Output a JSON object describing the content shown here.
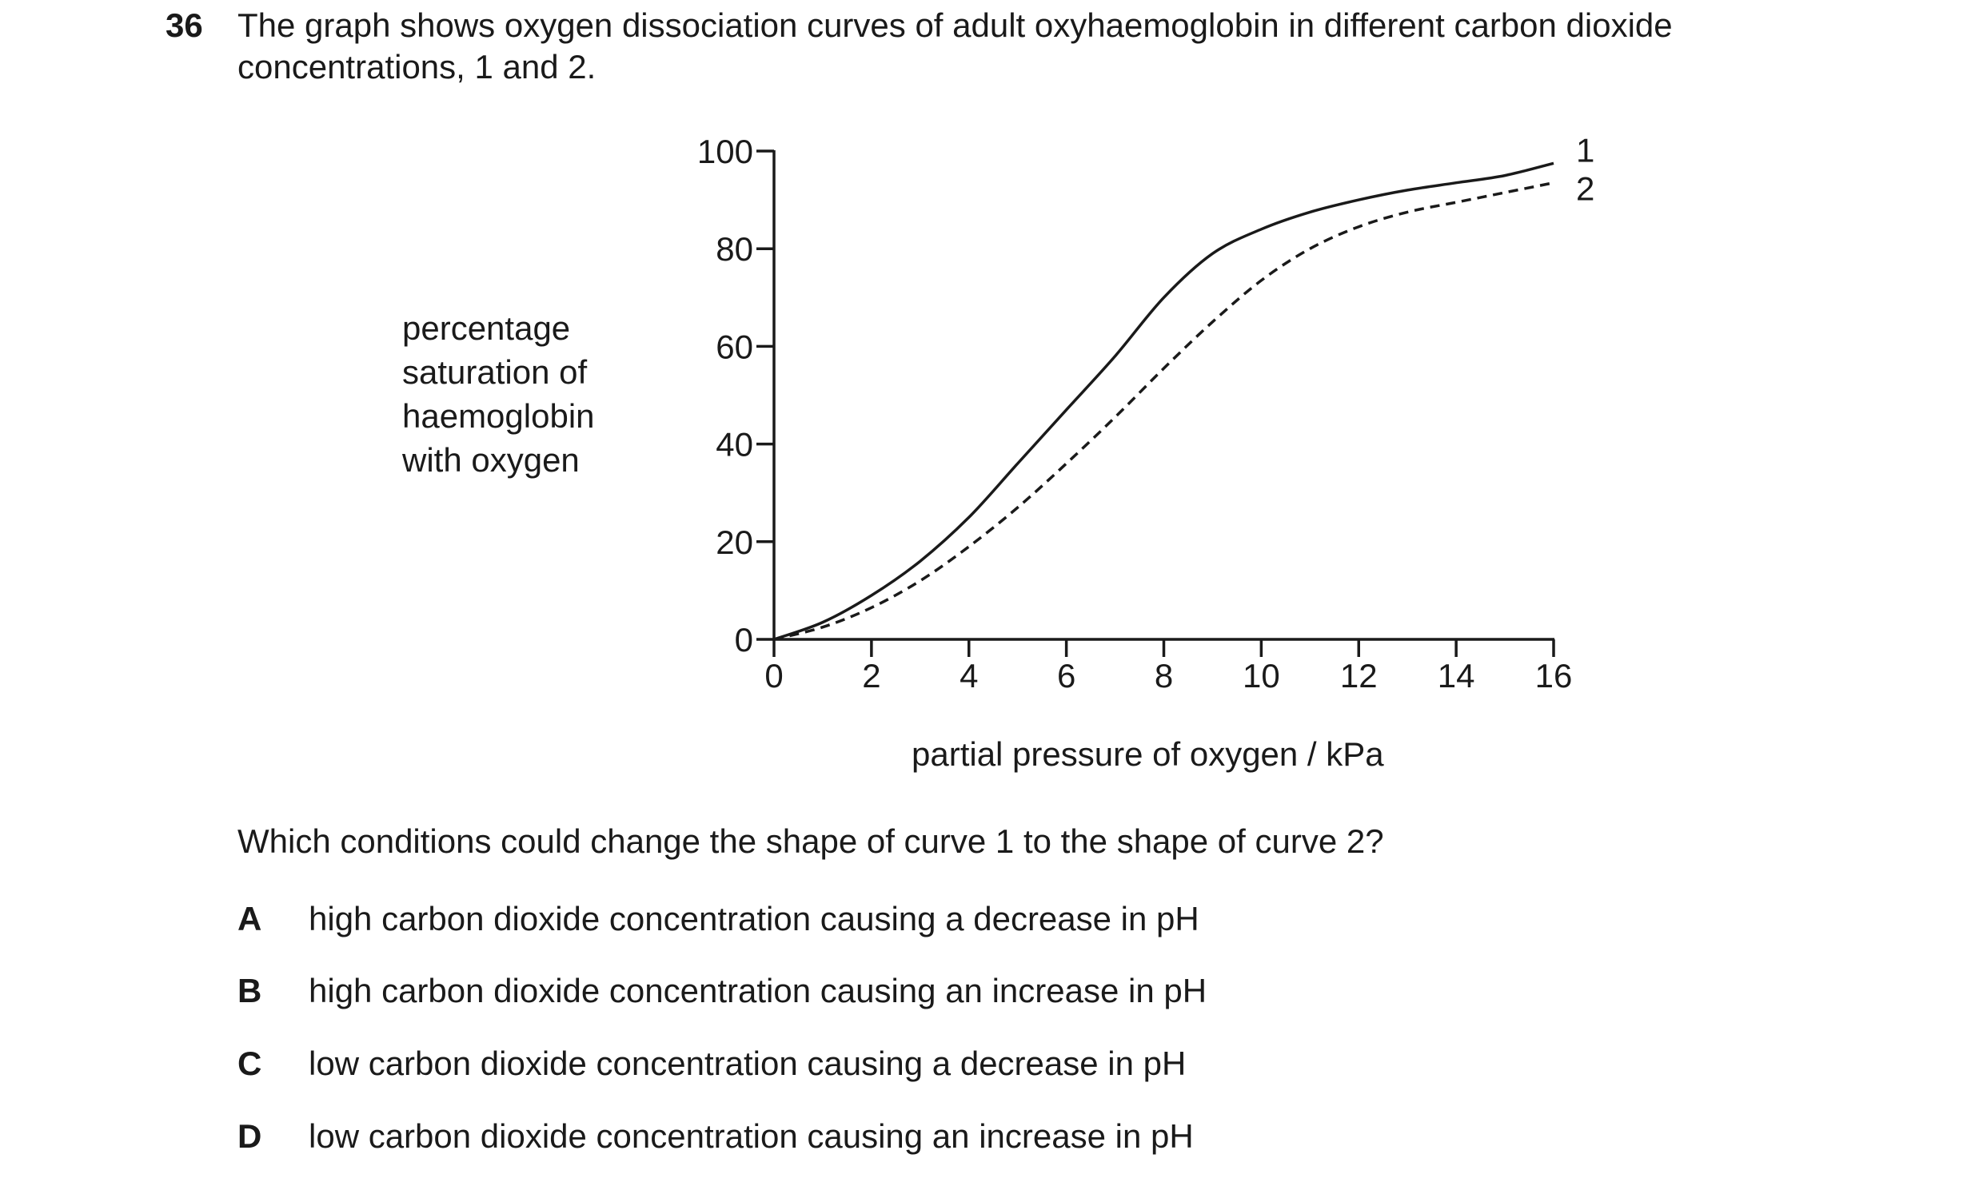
{
  "question": {
    "number": "36",
    "stem_lines": [
      "The graph shows oxygen dissociation curves of adult oxyhaemoglobin in different carbon dioxide",
      "concentrations, 1 and 2."
    ],
    "prompt": "Which conditions could change the shape of curve 1 to the shape of curve 2?",
    "options": [
      {
        "letter": "A",
        "text": "high carbon dioxide concentration causing a decrease in pH"
      },
      {
        "letter": "B",
        "text": "high carbon dioxide concentration causing an increase in pH"
      },
      {
        "letter": "C",
        "text": "low carbon dioxide concentration causing a decrease in pH"
      },
      {
        "letter": "D",
        "text": "low carbon dioxide concentration causing an increase in pH"
      }
    ]
  },
  "chart_data": {
    "type": "line",
    "title": "",
    "xlabel": "partial pressure of oxygen / kPa",
    "ylabel_lines": [
      "percentage",
      "saturation of",
      "haemoglobin",
      "with oxygen"
    ],
    "xlim": [
      0,
      16
    ],
    "ylim": [
      0,
      100
    ],
    "xticks": [
      0,
      2,
      4,
      6,
      8,
      10,
      12,
      14,
      16
    ],
    "yticks": [
      0,
      20,
      40,
      60,
      80,
      100
    ],
    "grid": false,
    "series": [
      {
        "name": "1",
        "style": "solid",
        "x": [
          0,
          1,
          2,
          3,
          4,
          5,
          6,
          7,
          8,
          9,
          10,
          11,
          12,
          13,
          14,
          15,
          16
        ],
        "y": [
          0,
          3.5,
          9,
          16,
          25,
          36,
          47,
          58,
          70,
          79,
          84,
          87.5,
          90,
          92,
          93.5,
          95,
          97.5
        ]
      },
      {
        "name": "2",
        "style": "dashed",
        "x": [
          0,
          1,
          2,
          3,
          4,
          5,
          6,
          7,
          8,
          9,
          10,
          11,
          12,
          13,
          14,
          15,
          16
        ],
        "y": [
          0,
          2.5,
          6.5,
          12,
          19,
          27,
          36,
          45.5,
          55.5,
          65,
          73.5,
          80,
          84.5,
          87.5,
          89.5,
          91.5,
          93.5
        ]
      }
    ]
  }
}
